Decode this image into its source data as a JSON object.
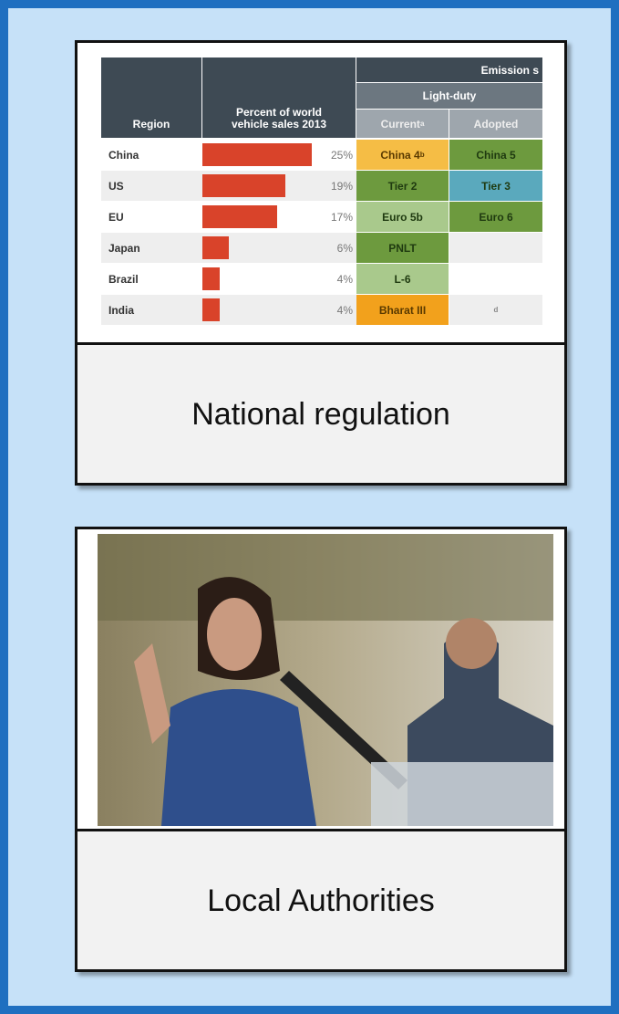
{
  "cards": [
    {
      "table": {
        "headers": {
          "region": "Region",
          "percent": "Percent of world vehicle sales 2013",
          "emission": "Emission s",
          "light_duty": "Light-duty",
          "current": {
            "text": "Current",
            "sup": "a"
          },
          "adopted": "Adopted"
        },
        "bar_color": "#d9432a",
        "rows": [
          {
            "region": "China",
            "value": 25,
            "value_label": "25%",
            "current": {
              "text": "China 4",
              "sup": "b",
              "color": "#f5bd45"
            },
            "adopted": {
              "text": "China 5",
              "color": "#6d9a3e"
            }
          },
          {
            "region": "US",
            "value": 19,
            "value_label": "19%",
            "current": {
              "text": "Tier 2",
              "color": "#6d9a3e"
            },
            "adopted": {
              "text": "Tier 3",
              "color": "#5aa9bd"
            }
          },
          {
            "region": "EU",
            "value": 17,
            "value_label": "17%",
            "current": {
              "text": "Euro 5b",
              "color": "#a9c98c"
            },
            "adopted": {
              "text": "Euro 6",
              "color": "#6d9a3e"
            }
          },
          {
            "region": "Japan",
            "value": 6,
            "value_label": "6%",
            "current": {
              "text": "PNLT",
              "color": "#6d9a3e"
            },
            "adopted": null
          },
          {
            "region": "Brazil",
            "value": 4,
            "value_label": "4%",
            "current": {
              "text": "L-6",
              "color": "#a9c98c"
            },
            "adopted": null
          },
          {
            "region": "India",
            "value": 4,
            "value_label": "4%",
            "current": {
              "text": "Bharat III",
              "color": "#f2a11c"
            },
            "adopted": {
              "text": "d"
            }
          }
        ]
      },
      "caption": "National regulation"
    },
    {
      "caption": "Local Authorities"
    }
  ]
}
